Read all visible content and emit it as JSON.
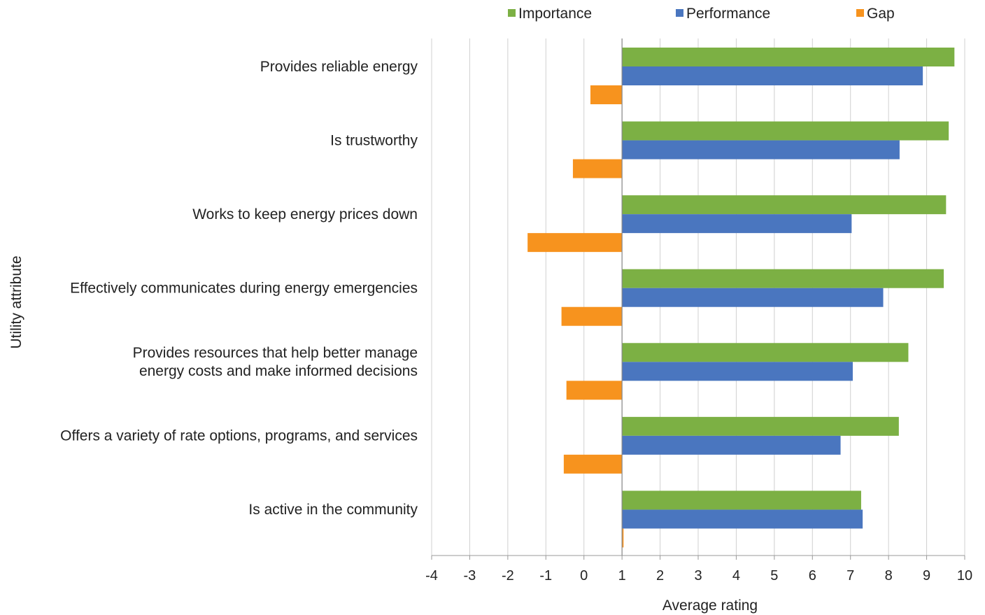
{
  "chart_data": {
    "type": "bar",
    "orientation": "horizontal",
    "categories": [
      "Provides reliable energy",
      "Is trustworthy",
      "Works to keep energy prices down",
      "Effectively communicates during energy emergencies",
      "Provides resources that help better manage energy costs and make informed decisions",
      "Offers a variety of rate options, programs, and services",
      "Is active in the community"
    ],
    "category_lines": [
      [
        "Provides reliable energy"
      ],
      [
        "Is trustworthy"
      ],
      [
        "Works to keep energy prices down"
      ],
      [
        "Effectively communicates during energy emergencies"
      ],
      [
        "Provides resources that help better manage",
        "energy costs and make informed decisions"
      ],
      [
        "Offers a variety of rate options, programs, and services"
      ],
      [
        "Is active in the community"
      ]
    ],
    "series": [
      {
        "name": "Importance",
        "color": "#7CB044",
        "values": [
          9.73,
          9.58,
          9.51,
          9.45,
          8.52,
          8.27,
          7.28
        ]
      },
      {
        "name": "Performance",
        "color": "#4A76BF",
        "values": [
          8.9,
          8.29,
          7.03,
          7.86,
          7.06,
          6.74,
          7.32
        ]
      },
      {
        "name": "Gap",
        "color": "#F7931E",
        "values": [
          -0.83,
          -1.29,
          -2.48,
          -1.59,
          -1.46,
          -1.53,
          0.04
        ]
      }
    ],
    "bar_base": 1,
    "xlim": [
      -4,
      10
    ],
    "xticks": [
      "-4",
      "-3",
      "-2",
      "-1",
      "0",
      "1",
      "2",
      "3",
      "4",
      "5",
      "6",
      "7",
      "8",
      "9",
      "10"
    ],
    "xlabel": "Average rating",
    "ylabel": "Utility attribute",
    "title": "",
    "grid": "vertical",
    "legend_position": "top"
  }
}
